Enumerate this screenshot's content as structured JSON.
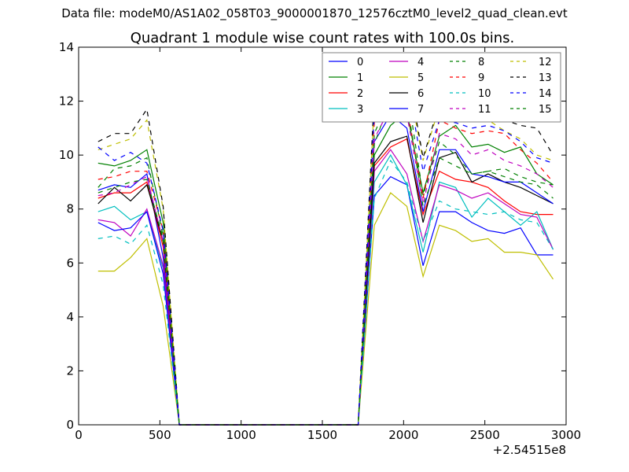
{
  "suptitle": "Data file: modeM0/AS1A02_058T03_9000001870_12576cztM0_level2_quad_clean.evt",
  "chart_data": {
    "type": "line",
    "title": "Quadrant 1 module wise count rates with 100.0s bins.",
    "xlabel": "",
    "ylabel": "",
    "x_offset_label": "+2.54515e8",
    "xlim": [
      0,
      3000
    ],
    "ylim": [
      0,
      14
    ],
    "xticks": [
      "0",
      "500",
      "1000",
      "1500",
      "2000",
      "2500",
      "3000"
    ],
    "yticks": [
      "0",
      "2",
      "4",
      "6",
      "8",
      "10",
      "12",
      "14"
    ],
    "legend_position": "upper-right",
    "x": [
      120,
      220,
      320,
      420,
      520,
      620,
      720,
      820,
      920,
      1020,
      1120,
      1220,
      1320,
      1420,
      1520,
      1620,
      1720,
      1820,
      1920,
      2020,
      2120,
      2220,
      2320,
      2420,
      2520,
      2620,
      2720,
      2820,
      2920
    ],
    "series": [
      {
        "name": "0",
        "color": "#0000ff",
        "dash": "solid",
        "values": [
          8.7,
          8.9,
          8.8,
          9.3,
          6.2,
          0,
          0,
          0,
          0,
          0,
          0,
          0,
          0,
          0,
          0,
          0,
          0,
          8.5,
          9.2,
          8.9,
          5.9,
          7.9,
          7.9,
          7.5,
          7.2,
          7.1,
          7.3,
          6.3,
          6.3
        ]
      },
      {
        "name": "1",
        "color": "#008000",
        "dash": "solid",
        "values": [
          9.7,
          9.6,
          9.8,
          10.2,
          7.5,
          0,
          0,
          0,
          0,
          0,
          0,
          0,
          0,
          0,
          0,
          0,
          0,
          10.0,
          11.1,
          11.6,
          8.6,
          10.7,
          11.1,
          10.3,
          10.4,
          10.1,
          10.3,
          9.3,
          8.9
        ]
      },
      {
        "name": "2",
        "color": "#ff0000",
        "dash": "solid",
        "values": [
          8.4,
          8.6,
          8.6,
          9.0,
          6.6,
          0,
          0,
          0,
          0,
          0,
          0,
          0,
          0,
          0,
          0,
          0,
          0,
          9.6,
          10.3,
          10.6,
          7.8,
          9.4,
          9.1,
          9.0,
          8.8,
          8.3,
          7.9,
          7.8,
          7.8
        ]
      },
      {
        "name": "3",
        "color": "#00bfbf",
        "dash": "solid",
        "values": [
          7.9,
          8.1,
          7.6,
          7.9,
          5.8,
          0,
          0,
          0,
          0,
          0,
          0,
          0,
          0,
          0,
          0,
          0,
          0,
          9.0,
          10.0,
          8.9,
          6.4,
          9.0,
          8.8,
          7.7,
          8.4,
          7.9,
          7.4,
          7.9,
          6.5
        ]
      },
      {
        "name": "4",
        "color": "#bf00bf",
        "dash": "solid",
        "values": [
          7.6,
          7.5,
          7.0,
          8.0,
          5.9,
          0,
          0,
          0,
          0,
          0,
          0,
          0,
          0,
          0,
          0,
          0,
          0,
          9.4,
          10.2,
          9.3,
          6.8,
          8.9,
          8.7,
          8.4,
          8.6,
          8.2,
          7.8,
          7.7,
          6.5
        ]
      },
      {
        "name": "5",
        "color": "#bfbf00",
        "dash": "solid",
        "values": [
          5.7,
          5.7,
          6.2,
          6.9,
          4.4,
          0,
          0,
          0,
          0,
          0,
          0,
          0,
          0,
          0,
          0,
          0,
          0,
          7.4,
          8.6,
          8.1,
          5.5,
          7.4,
          7.2,
          6.8,
          6.9,
          6.4,
          6.4,
          6.3,
          5.4
        ]
      },
      {
        "name": "6",
        "color": "#000000",
        "dash": "solid",
        "values": [
          8.2,
          8.8,
          8.3,
          8.9,
          6.8,
          0,
          0,
          0,
          0,
          0,
          0,
          0,
          0,
          0,
          0,
          0,
          0,
          9.7,
          10.5,
          10.7,
          7.5,
          9.9,
          10.1,
          9.0,
          9.3,
          9.0,
          8.8,
          8.5,
          8.2
        ]
      },
      {
        "name": "7",
        "color": "#0000ff",
        "dash": "solid",
        "values": [
          7.5,
          7.2,
          7.3,
          7.9,
          5.6,
          0,
          0,
          0,
          0,
          0,
          0,
          0,
          0,
          0,
          0,
          0,
          0,
          10.5,
          11.5,
          11.0,
          7.9,
          10.2,
          10.2,
          9.3,
          9.2,
          9.0,
          9.0,
          8.6,
          8.2
        ]
      },
      {
        "name": "8",
        "color": "#008000",
        "dash": "dashed",
        "values": [
          8.8,
          9.5,
          9.6,
          9.9,
          7.0,
          0,
          0,
          0,
          0,
          0,
          0,
          0,
          0,
          0,
          0,
          0,
          0,
          10.8,
          12.2,
          12.5,
          8.5,
          10.5,
          10.0,
          9.3,
          9.4,
          9.5,
          9.2,
          9.0,
          8.9
        ]
      },
      {
        "name": "9",
        "color": "#ff0000",
        "dash": "dashed",
        "values": [
          9.1,
          9.2,
          9.4,
          9.4,
          7.2,
          0,
          0,
          0,
          0,
          0,
          0,
          0,
          0,
          0,
          0,
          0,
          0,
          11.2,
          12.0,
          11.8,
          8.4,
          11.3,
          11.0,
          10.8,
          10.9,
          10.8,
          10.2,
          9.7,
          9.0
        ]
      },
      {
        "name": "10",
        "color": "#00bfbf",
        "dash": "dashed",
        "values": [
          6.9,
          7.0,
          6.7,
          7.4,
          5.2,
          0,
          0,
          0,
          0,
          0,
          0,
          0,
          0,
          0,
          0,
          0,
          0,
          8.4,
          9.8,
          9.0,
          6.8,
          8.3,
          8.0,
          7.9,
          7.8,
          7.9,
          7.6,
          7.5,
          6.5
        ]
      },
      {
        "name": "11",
        "color": "#bf00bf",
        "dash": "dashed",
        "values": [
          8.5,
          8.6,
          8.9,
          9.2,
          6.8,
          0,
          0,
          0,
          0,
          0,
          0,
          0,
          0,
          0,
          0,
          0,
          0,
          10.6,
          11.8,
          11.5,
          8.2,
          10.8,
          10.6,
          10.0,
          10.2,
          9.8,
          9.6,
          9.3,
          8.8
        ]
      },
      {
        "name": "12",
        "color": "#bfbf00",
        "dash": "dashed",
        "values": [
          10.2,
          10.4,
          10.6,
          11.3,
          8.0,
          0,
          0,
          0,
          0,
          0,
          0,
          0,
          0,
          0,
          0,
          0,
          0,
          12.0,
          13.5,
          13.0,
          9.8,
          11.8,
          11.6,
          11.4,
          11.3,
          10.9,
          10.6,
          10.0,
          9.8
        ]
      },
      {
        "name": "13",
        "color": "#000000",
        "dash": "dashed",
        "values": [
          10.5,
          10.8,
          10.8,
          11.7,
          8.1,
          0,
          0,
          0,
          0,
          0,
          0,
          0,
          0,
          0,
          0,
          0,
          0,
          12.3,
          13.7,
          13.3,
          9.9,
          11.9,
          11.8,
          11.5,
          11.6,
          11.3,
          11.1,
          11.0,
          10.0
        ]
      },
      {
        "name": "14",
        "color": "#0000ff",
        "dash": "dashed",
        "values": [
          10.3,
          9.8,
          10.1,
          9.7,
          7.2,
          0,
          0,
          0,
          0,
          0,
          0,
          0,
          0,
          0,
          0,
          0,
          0,
          11.5,
          13.1,
          12.8,
          9.4,
          11.3,
          11.2,
          11.0,
          11.1,
          10.9,
          10.5,
          9.9,
          9.7
        ]
      },
      {
        "name": "15",
        "color": "#008000",
        "dash": "dashed",
        "values": [
          8.6,
          8.8,
          9.0,
          9.1,
          6.9,
          0,
          0,
          0,
          0,
          0,
          0,
          0,
          0,
          0,
          0,
          0,
          0,
          10.4,
          12.1,
          12.0,
          8.1,
          9.9,
          9.6,
          9.3,
          9.4,
          9.2,
          9.0,
          8.9,
          8.4
        ]
      }
    ]
  }
}
